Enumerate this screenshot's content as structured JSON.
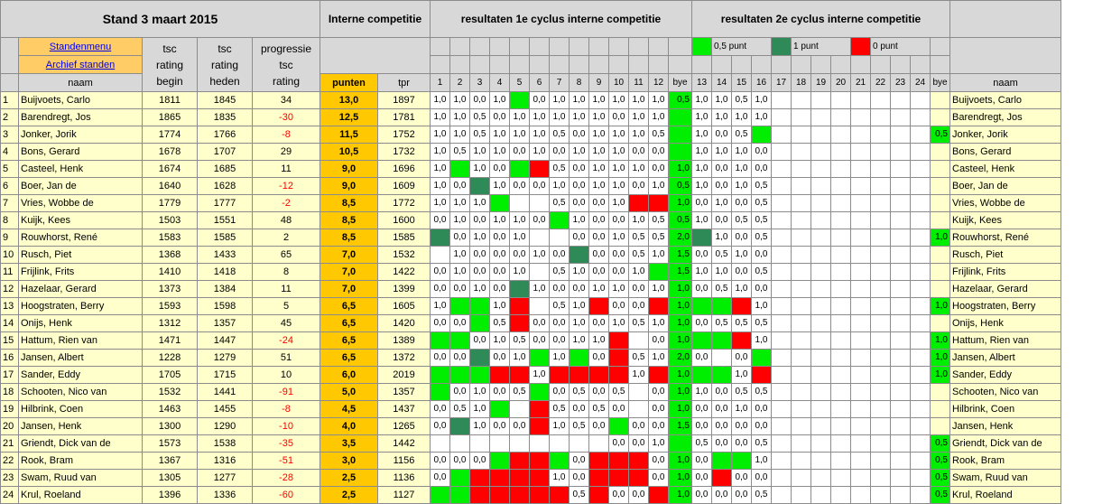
{
  "title": "Stand 3 maart 2015",
  "header": {
    "interne": "Interne competitie",
    "cyc1": "resultaten 1e cyclus interne competitie",
    "cyc2": "resultaten 2e cyclus interne competitie",
    "standenmenu": "Standenmenu",
    "archief": "Archief standen",
    "naam": "naam",
    "tsc_begin": [
      "tsc",
      "rating",
      "begin"
    ],
    "tsc_heden": [
      "tsc",
      "rating",
      "heden"
    ],
    "progressie": [
      "progressie",
      "tsc",
      "rating"
    ],
    "punten": "punten",
    "tpr": "tpr",
    "naam_right": "naam",
    "legend": [
      "0,5 punt",
      "1 punt",
      "0 punt"
    ]
  },
  "columns1": [
    "1",
    "2",
    "3",
    "4",
    "5",
    "6",
    "7",
    "8",
    "9",
    "10",
    "11",
    "12",
    "bye"
  ],
  "columns2": [
    "13",
    "14",
    "15",
    "16",
    "17",
    "18",
    "19",
    "20",
    "21",
    "22",
    "23",
    "24",
    "bye"
  ],
  "colors": {
    "green": "#00ee00",
    "dark": "#2e8b57",
    "red": "#ff0000",
    "yellow": "#ffffcc",
    "orange": "#ffc800"
  },
  "players": [
    {
      "n": "1",
      "name": "Buijvoets, Carlo",
      "begin": "1811",
      "heden": "1845",
      "prog": "34",
      "pts": "13,0",
      "tpr": "1897",
      "c1": [
        "1,0",
        "1,0",
        "0,0",
        "1,0",
        "G",
        "0,0",
        "1,0",
        "1,0",
        "1,0",
        "1,0",
        "1,0",
        "1,0",
        "0,5"
      ],
      "c2": [
        "1,0",
        "1,0",
        "0,5",
        "1,0",
        "",
        "",
        "",
        "",
        "",
        "",
        "",
        "",
        ""
      ]
    },
    {
      "n": "2",
      "name": "Barendregt, Jos",
      "begin": "1865",
      "heden": "1835",
      "prog": "-30",
      "pts": "12,5",
      "tpr": "1781",
      "c1": [
        "1,0",
        "1,0",
        "0,5",
        "0,0",
        "1,0",
        "1,0",
        "1,0",
        "1,0",
        "1,0",
        "0,0",
        "1,0",
        "1,0",
        "G"
      ],
      "c2": [
        "1,0",
        "1,0",
        "1,0",
        "1,0",
        "",
        "",
        "",
        "",
        "",
        "",
        "",
        "",
        ""
      ]
    },
    {
      "n": "3",
      "name": "Jonker, Jorik",
      "begin": "1774",
      "heden": "1766",
      "prog": "-8",
      "pts": "11,5",
      "tpr": "1752",
      "c1": [
        "1,0",
        "1,0",
        "0,5",
        "1,0",
        "1,0",
        "1,0",
        "0,5",
        "0,0",
        "1,0",
        "1,0",
        "1,0",
        "0,5",
        "G"
      ],
      "c2": [
        "1,0",
        "0,0",
        "0,5",
        "G",
        "",
        "",
        "",
        "",
        "",
        "",
        "",
        "",
        "0,5"
      ]
    },
    {
      "n": "4",
      "name": "Bons, Gerard",
      "begin": "1678",
      "heden": "1707",
      "prog": "29",
      "pts": "10,5",
      "tpr": "1732",
      "c1": [
        "1,0",
        "0,5",
        "1,0",
        "1,0",
        "0,0",
        "1,0",
        "0,0",
        "1,0",
        "1,0",
        "1,0",
        "0,0",
        "0,0",
        "G"
      ],
      "c2": [
        "1,0",
        "1,0",
        "1,0",
        "0,0",
        "",
        "",
        "",
        "",
        "",
        "",
        "",
        "",
        ""
      ]
    },
    {
      "n": "5",
      "name": "Casteel, Henk",
      "begin": "1674",
      "heden": "1685",
      "prog": "11",
      "pts": "9,0",
      "tpr": "1696",
      "c1": [
        "1,0",
        "G",
        "1,0",
        "0,0",
        "G",
        "R",
        "0,5",
        "0,0",
        "1,0",
        "1,0",
        "1,0",
        "0,0",
        "1,0"
      ],
      "c2": [
        "1,0",
        "0,0",
        "1,0",
        "0,0",
        "",
        "",
        "",
        "",
        "",
        "",
        "",
        "",
        ""
      ]
    },
    {
      "n": "6",
      "name": "Boer, Jan de",
      "begin": "1640",
      "heden": "1628",
      "prog": "-12",
      "pts": "9,0",
      "tpr": "1609",
      "c1": [
        "1,0",
        "0,0",
        "D",
        "1,0",
        "0,0",
        "0,0",
        "1,0",
        "0,0",
        "1,0",
        "1,0",
        "0,0",
        "1,0",
        "0,5"
      ],
      "c2": [
        "1,0",
        "0,0",
        "1,0",
        "0,5",
        "",
        "",
        "",
        "",
        "",
        "",
        "",
        "",
        ""
      ]
    },
    {
      "n": "7",
      "name": "Vries, Wobbe de",
      "begin": "1779",
      "heden": "1777",
      "prog": "-2",
      "pts": "8,5",
      "tpr": "1772",
      "c1": [
        "1,0",
        "1,0",
        "1,0",
        "G",
        "",
        "",
        "0,5",
        "0,0",
        "0,0",
        "1,0",
        "R",
        "R",
        "1,0"
      ],
      "c2": [
        "0,0",
        "1,0",
        "0,0",
        "0,5",
        "",
        "",
        "",
        "",
        "",
        "",
        "",
        "",
        ""
      ]
    },
    {
      "n": "8",
      "name": "Kuijk, Kees",
      "begin": "1503",
      "heden": "1551",
      "prog": "48",
      "pts": "8,5",
      "tpr": "1600",
      "c1": [
        "0,0",
        "1,0",
        "0,0",
        "1,0",
        "1,0",
        "0,0",
        "G",
        "1,0",
        "0,0",
        "0,0",
        "1,0",
        "0,5",
        "0,5"
      ],
      "c2": [
        "1,0",
        "0,0",
        "0,5",
        "0,5",
        "",
        "",
        "",
        "",
        "",
        "",
        "",
        "",
        ""
      ]
    },
    {
      "n": "9",
      "name": "Rouwhorst, René",
      "begin": "1583",
      "heden": "1585",
      "prog": "2",
      "pts": "8,5",
      "tpr": "1585",
      "c1": [
        "D",
        "0,0",
        "1,0",
        "0,0",
        "1,0",
        "",
        "",
        "0,0",
        "0,0",
        "1,0",
        "0,5",
        "0,5",
        "2,0"
      ],
      "c2": [
        "D",
        "1,0",
        "0,0",
        "0,5",
        "",
        "",
        "",
        "",
        "",
        "",
        "",
        "",
        "1,0"
      ]
    },
    {
      "n": "10",
      "name": "Rusch, Piet",
      "begin": "1368",
      "heden": "1433",
      "prog": "65",
      "pts": "7,0",
      "tpr": "1532",
      "c1": [
        "",
        "1,0",
        "0,0",
        "0,0",
        "0,0",
        "1,0",
        "0,0",
        "D",
        "0,0",
        "0,0",
        "0,5",
        "1,0",
        "1,5"
      ],
      "c2": [
        "0,0",
        "0,5",
        "1,0",
        "0,0",
        "",
        "",
        "",
        "",
        "",
        "",
        "",
        "",
        ""
      ]
    },
    {
      "n": "11",
      "name": "Frijlink, Frits",
      "begin": "1410",
      "heden": "1418",
      "prog": "8",
      "pts": "7,0",
      "tpr": "1422",
      "c1": [
        "0,0",
        "1,0",
        "0,0",
        "0,0",
        "1,0",
        "",
        "0,5",
        "1,0",
        "0,0",
        "0,0",
        "1,0",
        "G",
        "1,5"
      ],
      "c2": [
        "1,0",
        "1,0",
        "0,0",
        "0,5",
        "",
        "",
        "",
        "",
        "",
        "",
        "",
        "",
        ""
      ]
    },
    {
      "n": "12",
      "name": "Hazelaar, Gerard",
      "begin": "1373",
      "heden": "1384",
      "prog": "11",
      "pts": "7,0",
      "tpr": "1399",
      "c1": [
        "0,0",
        "0,0",
        "1,0",
        "0,0",
        "D",
        "1,0",
        "0,0",
        "0,0",
        "1,0",
        "1,0",
        "0,0",
        "1,0",
        "1,0"
      ],
      "c2": [
        "0,0",
        "0,5",
        "1,0",
        "0,0",
        "",
        "",
        "",
        "",
        "",
        "",
        "",
        "",
        ""
      ]
    },
    {
      "n": "13",
      "name": "Hoogstraten, Berry",
      "begin": "1593",
      "heden": "1598",
      "prog": "5",
      "pts": "6,5",
      "tpr": "1605",
      "c1": [
        "1,0",
        "G",
        "G",
        "1,0",
        "R",
        "",
        "0,5",
        "1,0",
        "R",
        "0,0",
        "0,0",
        "R",
        "1,0"
      ],
      "c2": [
        "G",
        "G",
        "R",
        "1,0",
        "",
        "",
        "",
        "",
        "",
        "",
        "",
        "",
        "1,0"
      ]
    },
    {
      "n": "14",
      "name": "Onijs, Henk",
      "begin": "1312",
      "heden": "1357",
      "prog": "45",
      "pts": "6,5",
      "tpr": "1420",
      "c1": [
        "0,0",
        "0,0",
        "G",
        "0,5",
        "R",
        "0,0",
        "0,0",
        "1,0",
        "0,0",
        "1,0",
        "0,5",
        "1,0",
        "1,0"
      ],
      "c2": [
        "0,0",
        "0,5",
        "0,5",
        "0,5",
        "",
        "",
        "",
        "",
        "",
        "",
        "",
        "",
        ""
      ]
    },
    {
      "n": "15",
      "name": "Hattum, Rien van",
      "begin": "1471",
      "heden": "1447",
      "prog": "-24",
      "pts": "6,5",
      "tpr": "1389",
      "c1": [
        "G",
        "G",
        "0,0",
        "1,0",
        "0,5",
        "0,0",
        "0,0",
        "1,0",
        "1,0",
        "R",
        "",
        "0,0",
        "1,0"
      ],
      "c2": [
        "G",
        "G",
        "R",
        "1,0",
        "",
        "",
        "",
        "",
        "",
        "",
        "",
        "",
        "1,0"
      ]
    },
    {
      "n": "16",
      "name": "Jansen, Albert",
      "begin": "1228",
      "heden": "1279",
      "prog": "51",
      "pts": "6,5",
      "tpr": "1372",
      "c1": [
        "0,0",
        "0,0",
        "D",
        "0,0",
        "1,0",
        "G",
        "1,0",
        "G",
        "0,0",
        "R",
        "0,5",
        "1,0",
        "2,0"
      ],
      "c2": [
        "0,0",
        "",
        "0,0",
        "G",
        "",
        "",
        "",
        "",
        "",
        "",
        "",
        "",
        "1,0"
      ]
    },
    {
      "n": "17",
      "name": "Sander, Eddy",
      "begin": "1705",
      "heden": "1715",
      "prog": "10",
      "pts": "6,0",
      "tpr": "2019",
      "c1": [
        "G",
        "G",
        "G",
        "R",
        "R",
        "1,0",
        "R",
        "R",
        "R",
        "R",
        "1,0",
        "R",
        "1,0"
      ],
      "c2": [
        "G",
        "G",
        "1,0",
        "R",
        "",
        "",
        "",
        "",
        "",
        "",
        "",
        "",
        "1,0"
      ]
    },
    {
      "n": "18",
      "name": "Schooten, Nico van",
      "begin": "1532",
      "heden": "1441",
      "prog": "-91",
      "pts": "5,0",
      "tpr": "1357",
      "c1": [
        "G",
        "0,0",
        "1,0",
        "0,0",
        "0,5",
        "G",
        "0,0",
        "0,5",
        "0,0",
        "0,5",
        "",
        "0,0",
        "1,0"
      ],
      "c2": [
        "1,0",
        "0,0",
        "0,5",
        "0,5",
        "",
        "",
        "",
        "",
        "",
        "",
        "",
        "",
        ""
      ]
    },
    {
      "n": "19",
      "name": "Hilbrink, Coen",
      "begin": "1463",
      "heden": "1455",
      "prog": "-8",
      "pts": "4,5",
      "tpr": "1437",
      "c1": [
        "0,0",
        "0,5",
        "1,0",
        "G",
        "",
        "R",
        "0,5",
        "0,0",
        "0,5",
        "0,0",
        "",
        "0,0",
        "1,0"
      ],
      "c2": [
        "0,0",
        "0,0",
        "1,0",
        "0,0",
        "",
        "",
        "",
        "",
        "",
        "",
        "",
        "",
        ""
      ]
    },
    {
      "n": "20",
      "name": "Jansen, Henk",
      "begin": "1300",
      "heden": "1290",
      "prog": "-10",
      "pts": "4,0",
      "tpr": "1265",
      "c1": [
        "0,0",
        "D",
        "1,0",
        "0,0",
        "0,0",
        "R",
        "1,0",
        "0,5",
        "0,0",
        "G",
        "0,0",
        "0,0",
        "1,5"
      ],
      "c2": [
        "0,0",
        "0,0",
        "0,0",
        "0,0",
        "",
        "",
        "",
        "",
        "",
        "",
        "",
        "",
        ""
      ]
    },
    {
      "n": "21",
      "name": "Griendt, Dick van de",
      "begin": "1573",
      "heden": "1538",
      "prog": "-35",
      "pts": "3,5",
      "tpr": "1442",
      "c1": [
        "",
        "",
        "",
        "",
        "",
        "",
        "",
        "",
        "",
        "0,0",
        "0,0",
        "1,0",
        "G"
      ],
      "c2": [
        "0,5",
        "0,0",
        "0,0",
        "0,5",
        "",
        "",
        "",
        "",
        "",
        "",
        "",
        "",
        "0,5"
      ]
    },
    {
      "n": "22",
      "name": "Rook, Bram",
      "begin": "1367",
      "heden": "1316",
      "prog": "-51",
      "pts": "3,0",
      "tpr": "1156",
      "c1": [
        "0,0",
        "0,0",
        "0,0",
        "G",
        "R",
        "R",
        "G",
        "0,0",
        "R",
        "R",
        "R",
        "0,0",
        "1,0"
      ],
      "c2": [
        "0,0",
        "G",
        "G",
        "1,0",
        "",
        "",
        "",
        "",
        "",
        "",
        "",
        "",
        "0,5"
      ]
    },
    {
      "n": "23",
      "name": "Swam, Ruud van",
      "begin": "1305",
      "heden": "1277",
      "prog": "-28",
      "pts": "2,5",
      "tpr": "1136",
      "c1": [
        "0,0",
        "G",
        "R",
        "R",
        "R",
        "R",
        "1,0",
        "0,0",
        "R",
        "R",
        "R",
        "0,0",
        "1,0"
      ],
      "c2": [
        "0,0",
        "R",
        "0,0",
        "0,0",
        "",
        "",
        "",
        "",
        "",
        "",
        "",
        "",
        "0,5"
      ]
    },
    {
      "n": "24",
      "name": "Krul, Roeland",
      "begin": "1396",
      "heden": "1336",
      "prog": "-60",
      "pts": "2,5",
      "tpr": "1127",
      "c1": [
        "G",
        "G",
        "R",
        "R",
        "R",
        "R",
        "R",
        "0,5",
        "R",
        "0,0",
        "0,0",
        "R",
        "1,0"
      ],
      "c2": [
        "0,0",
        "0,0",
        "0,0",
        "0,5",
        "",
        "",
        "",
        "",
        "",
        "",
        "",
        "",
        "0,5"
      ]
    }
  ]
}
